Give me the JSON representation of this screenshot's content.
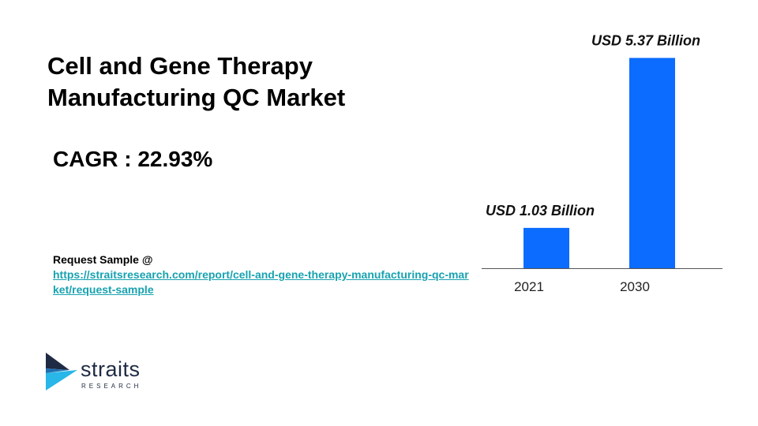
{
  "title": "Cell and Gene Therapy Manufacturing QC Market",
  "cagr": "CAGR : 22.93%",
  "request": {
    "label": "Request Sample @",
    "url": "https://straitsresearch.com/report/cell-and-gene-therapy-manufacturing-qc-market/request-sample"
  },
  "logo": {
    "name": "straits",
    "subtitle": "RESEARCH",
    "icon": "straits-research-logo-icon"
  },
  "colors": {
    "bar": "#0b6cff",
    "link": "#17a2b0",
    "logo_dark": "#1f2a44",
    "logo_accent": "#29b6e8"
  },
  "chart_data": {
    "type": "bar",
    "categories": [
      "2021",
      "2030"
    ],
    "values": [
      1.03,
      5.37
    ],
    "data_labels": [
      "USD 1.03 Billion",
      "USD 5.37 Billion"
    ],
    "title": "",
    "xlabel": "",
    "ylabel": "",
    "ylim": [
      0,
      5.6
    ],
    "grid": false,
    "legend": "none"
  }
}
